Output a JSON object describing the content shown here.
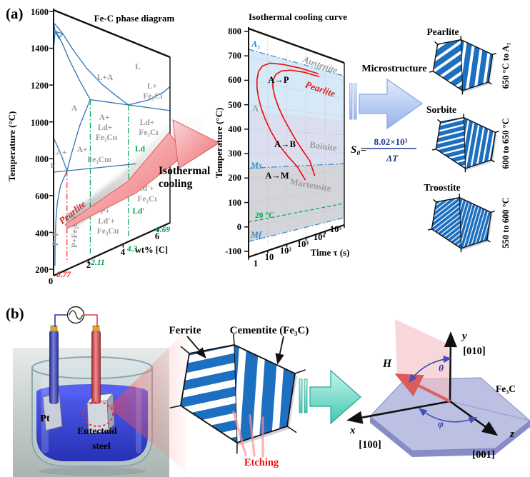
{
  "panel_a_label": "(a)",
  "panel_b_label": "(b)",
  "phase_diagram": {
    "title": "Fe-C phase diagram",
    "y_axis_label": "Temperature (°C)",
    "x_axis_label": "wt% [C]",
    "y_ticks": [
      "1600",
      "1400",
      "1200",
      "1000",
      "800",
      "600",
      "400",
      "200"
    ],
    "x_origin": "0",
    "x_ticks": [
      "2",
      "4",
      "6"
    ],
    "comp_marks": {
      "c077": "0.77",
      "c211": "2.11",
      "c43": "4.3",
      "c669": "6.69"
    },
    "regions": {
      "L": "L",
      "LA": "L+A",
      "A": "A",
      "Lp": "L+",
      "LpFe": "Fe₃Cɪ",
      "ALd1": "A+",
      "ALd2": "Ld+",
      "ALd3": "Fe₃Cɪɪ",
      "LdFe1": "Ld+",
      "LdFe2": "Fe₃Cɪ",
      "Ld": "Ld",
      "AF1": "A+",
      "AF2": "F",
      "AFe1": "A+",
      "AFe2": "Fe₃Cɪɪɪ",
      "pearlite": "Pearlite",
      "PF": "P+F",
      "PFe": "P+Fe₃Cɪɪ",
      "PLd1": "P+",
      "PLd2": "Ld'+",
      "PLd3": "Fe₃Cɪɪ",
      "LdpFe1": "Ld'+",
      "LdpFe2": "Fe₃Cɪ",
      "Ldp": "Ld'"
    },
    "annotation1": "Isothermal",
    "annotation2": "cooling"
  },
  "ttt": {
    "title": "Isothermal cooling curve",
    "y_axis_label": "Temperature (°C)",
    "x_axis_label": "Time τ (s)",
    "y_ticks": [
      "800",
      "700",
      "600",
      "500",
      "400",
      "300",
      "200",
      "100",
      "0",
      "-100"
    ],
    "x_ticks": [
      "1",
      "10",
      "10²",
      "10³",
      "10⁴",
      "10⁵"
    ],
    "marks": {
      "a1": "A₁",
      "ms": "Ms",
      "mf": "Mf",
      "room": "20 °C"
    },
    "labels": {
      "austenite": "Austenite",
      "pearlite": "Pearlite",
      "bainite": "Bainite",
      "martensite": "Martensite",
      "A": "A",
      "AP": "A→P",
      "AB": "A→B",
      "AM": "A→M"
    }
  },
  "micro": {
    "title": "Microstructure",
    "formula": {
      "lhs": "S₀=",
      "num": "8.02×10³",
      "den": "ΔT"
    },
    "items": [
      {
        "name": "Pearlite",
        "range": "650 °C to A₁"
      },
      {
        "name": "Sorbite",
        "range": "600 to 650 °C"
      },
      {
        "name": "Troostite",
        "range": "550 to 600 °C"
      }
    ]
  },
  "experiment": {
    "pt": "Pt",
    "sample1": "Eutectoid",
    "sample2": "steel",
    "ferrite": "Ferrite",
    "cementite": "Cementite (Fe₃C)",
    "etching": "Etching"
  },
  "crystal": {
    "H": "H",
    "theta": "θ",
    "phi": "φ",
    "x": "x",
    "y": "y",
    "z": "z",
    "dx": "[100]",
    "dy": "[010]",
    "dz": "[001]",
    "mat": "Fe₃C"
  },
  "colors": {
    "phase_line": "#2e75b6",
    "dash_red": "#ff2020",
    "dash_green": "#00a651",
    "gray_label": "#9b9b9b",
    "ttt_red": "#f01010",
    "ttt_blue": "#2e8fce",
    "green": "#00a651",
    "stripe_blue": "#1d6fc0",
    "navy": "#1f3a8f",
    "grid": "#b9bcc4",
    "band_pearlite": "#d7e9f7",
    "band_bainite": "#dbdeee",
    "band_martensite": "#d4d4db"
  },
  "chart_data": [
    {
      "type": "line",
      "title": "Fe-C phase diagram",
      "xlabel": "wt% [C]",
      "ylabel": "Temperature (°C)",
      "x_range": [
        0,
        6.69
      ],
      "y_range": [
        200,
        1600
      ],
      "invariants": {
        "eutectoid_C": 727,
        "eutectic_C": 1148,
        "peritectic_C": 1495,
        "melt_C": 1538
      },
      "boundaries": [
        {
          "name": "liquidus-left",
          "points": [
            [
              0,
              1538
            ],
            [
              0.25,
              1520
            ],
            [
              0.53,
              1496
            ],
            [
              1.1,
              1425
            ],
            [
              1.9,
              1335
            ],
            [
              2.8,
              1255
            ],
            [
              3.6,
              1198
            ],
            [
              4.3,
              1148
            ]
          ]
        },
        {
          "name": "liquidus-right",
          "points": [
            [
              4.3,
              1148
            ],
            [
              5.5,
              1210
            ],
            [
              6.3,
              1290
            ],
            [
              6.69,
              1350
            ]
          ]
        },
        {
          "name": "peritectic-line",
          "points": [
            [
              0.09,
              1495
            ],
            [
              0.53,
              1495
            ]
          ]
        },
        {
          "name": "delta-left",
          "points": [
            [
              0,
              1538
            ],
            [
              0.09,
              1495
            ]
          ]
        },
        {
          "name": "delta-right",
          "points": [
            [
              0,
              1394
            ],
            [
              0.09,
              1495
            ]
          ]
        },
        {
          "name": "delta-lens",
          "points": [
            [
              0.09,
              1495
            ],
            [
              0.3,
              1464
            ],
            [
              0.53,
              1495
            ]
          ]
        },
        {
          "name": "solidus",
          "points": [
            [
              0.17,
              1493
            ],
            [
              0.5,
              1440
            ],
            [
              0.9,
              1360
            ],
            [
              1.5,
              1252
            ],
            [
              2.11,
              1148
            ]
          ]
        },
        {
          "name": "eutectic-line",
          "points": [
            [
              2.11,
              1148
            ],
            [
              6.69,
              1148
            ]
          ]
        },
        {
          "name": "acm",
          "points": [
            [
              0.77,
              727
            ],
            [
              1.05,
              830
            ],
            [
              1.5,
              985
            ],
            [
              1.85,
              1080
            ],
            [
              2.11,
              1148
            ]
          ]
        },
        {
          "name": "a3",
          "points": [
            [
              0,
              912
            ],
            [
              0.2,
              872
            ],
            [
              0.45,
              815
            ],
            [
              0.65,
              762
            ],
            [
              0.77,
              727
            ]
          ]
        },
        {
          "name": "eutectoid-line",
          "points": [
            [
              0,
              727
            ],
            [
              4.75,
              727
            ]
          ]
        },
        {
          "name": "ferrite-solvus",
          "points": [
            [
              0.77,
              727
            ],
            [
              0.4,
              648
            ],
            [
              0.22,
              560
            ],
            [
              0.13,
              460
            ],
            [
              0.09,
              340
            ],
            [
              0.08,
              215
            ]
          ]
        }
      ],
      "composition_lines": [
        {
          "wt": 0.77,
          "from": 727,
          "to": 207,
          "color": "#ff2020",
          "label": "0.77"
        },
        {
          "wt": 2.11,
          "from": 1148,
          "to": 207,
          "color": "#00a651",
          "label": "2.11"
        },
        {
          "wt": 4.3,
          "from": 1148,
          "to": 207,
          "color": "#00a651",
          "label": "4.3"
        }
      ],
      "x_tick_values": [
        2,
        4,
        6
      ],
      "y_tick_values": [
        1600,
        1400,
        1200,
        1000,
        800,
        600,
        400,
        200
      ]
    },
    {
      "type": "line",
      "title": "Isothermal cooling curve",
      "xlabel": "Time τ (s)",
      "ylabel": "Temperature (°C)",
      "x_log_range": [
        0,
        5
      ],
      "y_range": [
        -100,
        800
      ],
      "horizontal_lines": [
        {
          "T": 727,
          "label": "A₁",
          "style": "dashdot",
          "color": "#2e8fce"
        },
        {
          "T": 240,
          "label": "Ms",
          "style": "dashdot",
          "color": "#2e8fce"
        },
        {
          "T": -60,
          "label": "Mf",
          "style": "dashdot",
          "color": "#2e8fce"
        },
        {
          "T": 20,
          "label": "20 °C",
          "style": "dashed",
          "color": "#00a651"
        }
      ],
      "bands": [
        {
          "from": 727,
          "to": 480,
          "color": "#d7e9f7",
          "label": "Pearlite"
        },
        {
          "from": 480,
          "to": 240,
          "color": "#dbdeee",
          "label": "Bainite"
        },
        {
          "from": 240,
          "to": -60,
          "color": "#d4d4db",
          "label": "Martensite"
        }
      ],
      "series": [
        {
          "name": "transformation start",
          "points": [
            [
              3.62,
              702
            ],
            [
              2.7,
              706
            ],
            [
              1.8,
              702
            ],
            [
              1.1,
              692
            ],
            [
              0.72,
              672
            ],
            [
              0.52,
              645
            ],
            [
              0.44,
              610
            ],
            [
              0.44,
              575
            ],
            [
              0.52,
              535
            ],
            [
              0.66,
              492
            ],
            [
              0.87,
              447
            ],
            [
              1.16,
              397
            ],
            [
              1.55,
              342
            ],
            [
              2.05,
              287
            ],
            [
              2.55,
              236
            ],
            [
              2.95,
              172
            ]
          ]
        },
        {
          "name": "transformation finish",
          "points": [
            [
              3.66,
              688
            ],
            [
              2.9,
              691
            ],
            [
              2.2,
              685
            ],
            [
              1.72,
              671
            ],
            [
              1.42,
              649
            ],
            [
              1.27,
              620
            ],
            [
              1.27,
              589
            ],
            [
              1.37,
              551
            ],
            [
              1.56,
              507
            ],
            [
              1.81,
              462
            ],
            [
              2.12,
              414
            ],
            [
              2.47,
              362
            ],
            [
              2.87,
              307
            ],
            [
              3.2,
              262
            ],
            [
              3.45,
              188
            ]
          ]
        }
      ],
      "x_tick_values": [
        0,
        1,
        2,
        3,
        4,
        5
      ],
      "y_tick_values": [
        800,
        700,
        600,
        500,
        400,
        300,
        200,
        100,
        0,
        -100
      ]
    }
  ]
}
